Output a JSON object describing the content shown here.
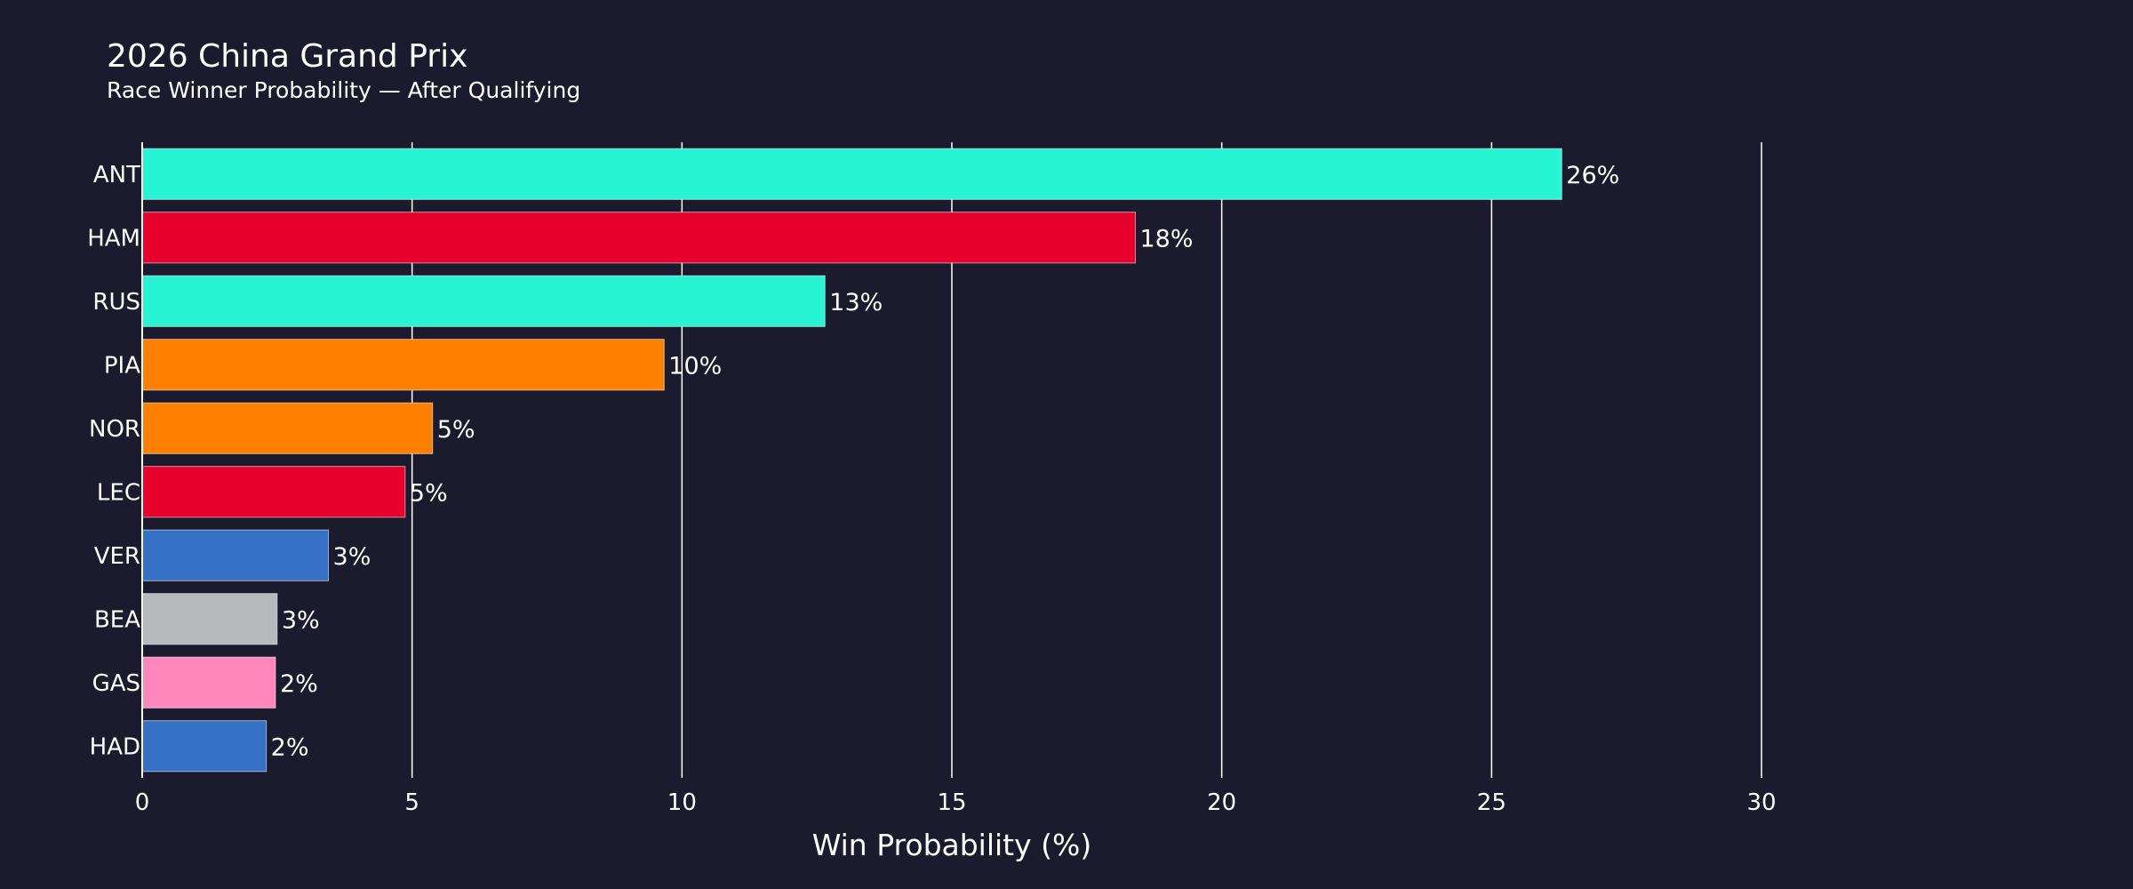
{
  "chart_data": {
    "type": "bar",
    "orientation": "horizontal",
    "title": "2026 China Grand Prix",
    "subtitle": "Race Winner Probability — After Qualifying",
    "xlabel": "Win Probability (%)",
    "ylabel": "",
    "xlim": [
      0,
      30
    ],
    "xticks": [
      0,
      5,
      10,
      15,
      20,
      25,
      30
    ],
    "grid": "vertical",
    "categories": [
      "ANT",
      "HAM",
      "RUS",
      "PIA",
      "NOR",
      "LEC",
      "VER",
      "BEA",
      "GAS",
      "HAD"
    ],
    "values": [
      26.3,
      18.4,
      12.65,
      9.67,
      5.38,
      4.87,
      3.45,
      2.5,
      2.47,
      2.3
    ],
    "data_labels": [
      "26%",
      "18%",
      "13%",
      "10%",
      "5%",
      "5%",
      "3%",
      "3%",
      "2%",
      "2%"
    ],
    "colors": [
      "#27f4d2",
      "#e8002d",
      "#27f4d2",
      "#ff8000",
      "#ff8000",
      "#e8002d",
      "#3671c6",
      "#b6babd",
      "#ff87bc",
      "#3671c6"
    ]
  }
}
